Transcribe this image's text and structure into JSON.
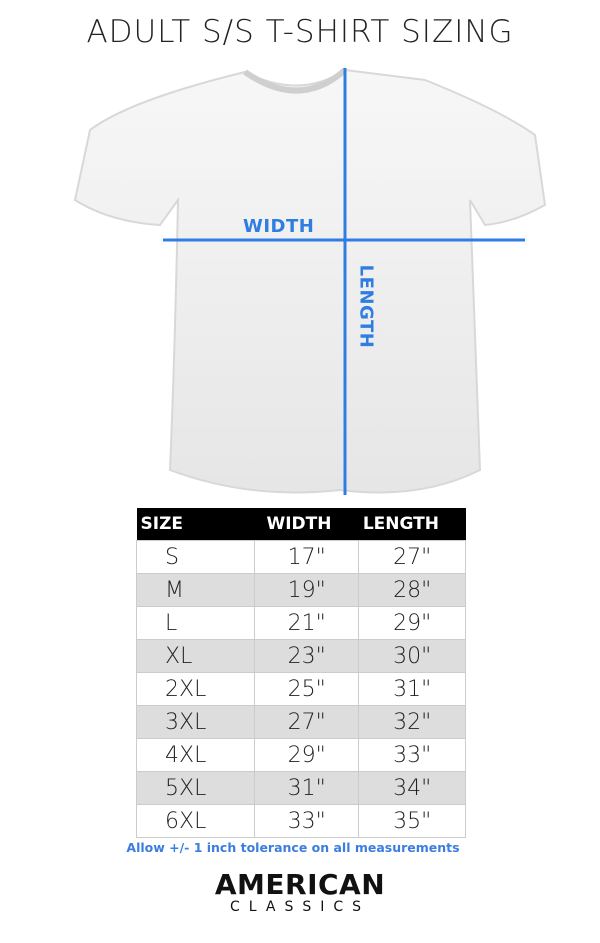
{
  "title": "ADULT S/S T-SHIRT SIZING",
  "diagram": {
    "width_label": "WIDTH",
    "length_label": "LENGTH",
    "line_color": "#2f7de1"
  },
  "table": {
    "headers": [
      "SIZE",
      "WIDTH",
      "LENGTH"
    ],
    "rows": [
      [
        "S",
        "17\"",
        "27\""
      ],
      [
        "M",
        "19\"",
        "28\""
      ],
      [
        "L",
        "21\"",
        "29\""
      ],
      [
        "XL",
        "23\"",
        "30\""
      ],
      [
        "2XL",
        "25\"",
        "31\""
      ],
      [
        "3XL",
        "27\"",
        "32\""
      ],
      [
        "4XL",
        "29\"",
        "33\""
      ],
      [
        "5XL",
        "31\"",
        "34\""
      ],
      [
        "6XL",
        "33\"",
        "35\""
      ]
    ]
  },
  "note": "Allow +/- 1 inch tolerance on all measurements",
  "logo": {
    "line1": "AMERICAN",
    "line2": "CLASSICS"
  }
}
